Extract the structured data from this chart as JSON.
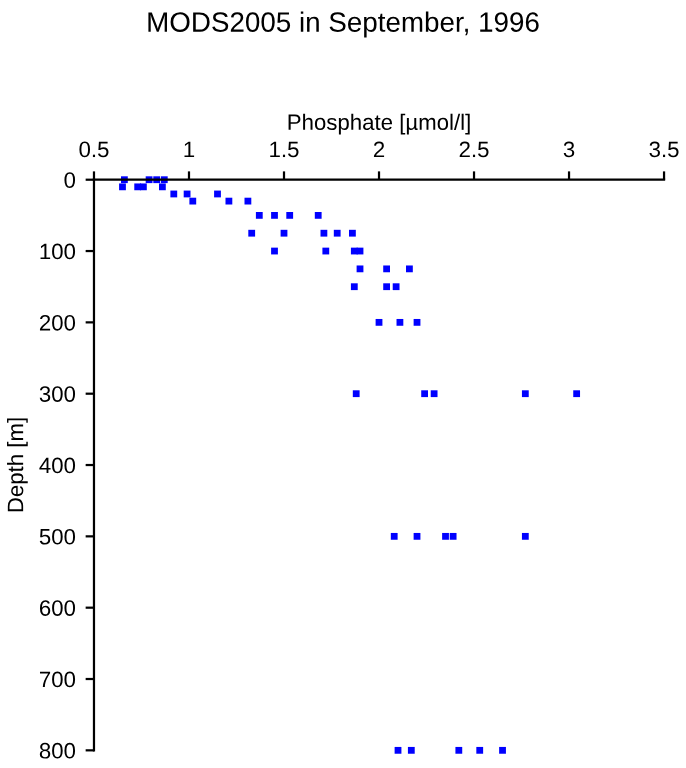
{
  "chart_data": {
    "type": "scatter",
    "title": "MODS2005 in September, 1996",
    "xlabel": "Phosphate [µmol/l]",
    "ylabel": "Depth [m]",
    "series": [
      {
        "color": "#0000ff",
        "x": [
          0.66,
          0.79,
          0.83,
          0.87,
          0.65,
          0.73,
          0.76,
          0.86,
          0.92,
          0.99,
          1.15,
          1.02,
          1.21,
          1.31,
          1.37,
          1.45,
          1.53,
          1.68,
          1.33,
          1.5,
          1.71,
          1.78,
          1.86,
          1.45,
          1.72,
          1.87,
          1.9,
          1.9,
          2.04,
          2.16,
          1.87,
          2.04,
          2.09,
          2.0,
          2.11,
          2.2,
          1.88,
          2.24,
          2.29,
          2.77,
          3.04,
          2.08,
          2.2,
          2.35,
          2.39,
          2.77,
          2.1,
          2.17,
          2.42,
          2.53,
          2.65
        ],
        "values": [
          0,
          0,
          0,
          0,
          10,
          10,
          10,
          10,
          20,
          20,
          20,
          30,
          30,
          30,
          50,
          50,
          50,
          50,
          75,
          75,
          75,
          75,
          75,
          100,
          100,
          100,
          100,
          125,
          125,
          125,
          150,
          150,
          150,
          200,
          200,
          200,
          300,
          300,
          300,
          300,
          300,
          500,
          500,
          500,
          500,
          500,
          800,
          800,
          800,
          800,
          800
        ]
      }
    ],
    "xlim": [
      0.5,
      3.5
    ],
    "xticks": [
      0.5,
      1,
      1.5,
      2,
      2.5,
      3,
      3.5
    ],
    "ylim": [
      800,
      0
    ],
    "yticks": [
      0,
      100,
      200,
      300,
      400,
      500,
      600,
      700,
      800
    ],
    "marker": "square",
    "grid": false
  }
}
